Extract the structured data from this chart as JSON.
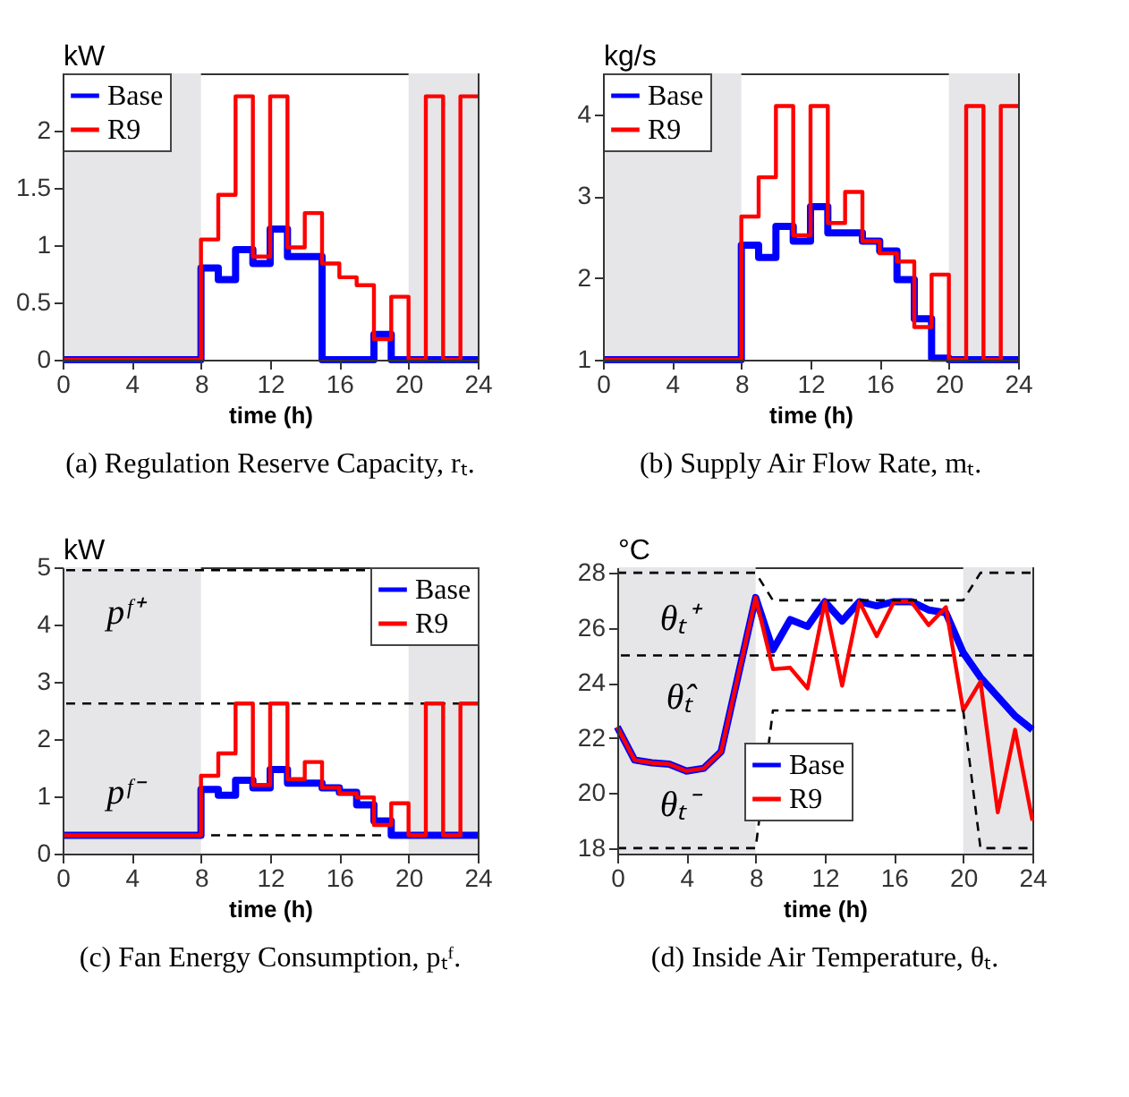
{
  "chart_data": [
    {
      "type": "step",
      "title": "(a) Regulation Reserve Capacity, rₜ.",
      "xlabel": "time (h)",
      "ylabel": "kW",
      "x": [
        0,
        1,
        2,
        3,
        4,
        5,
        6,
        7,
        8,
        9,
        10,
        11,
        12,
        13,
        14,
        15,
        16,
        17,
        18,
        19,
        20,
        21,
        22,
        23,
        24
      ],
      "series": [
        {
          "name": "Base",
          "color": "#0000ff",
          "values": [
            0,
            0,
            0,
            0,
            0,
            0,
            0,
            0,
            0.8,
            0.7,
            0.96,
            0.84,
            1.14,
            0.9,
            0.9,
            0,
            0,
            0,
            0.22,
            0,
            0,
            0,
            0,
            0,
            0
          ]
        },
        {
          "name": "R9",
          "color": "#ff0000",
          "values": [
            0,
            0,
            0,
            0,
            0,
            0,
            0,
            0,
            1.05,
            1.44,
            2.3,
            0.9,
            2.3,
            0.98,
            1.28,
            0.84,
            0.72,
            0.65,
            0.18,
            0.55,
            0,
            2.3,
            0,
            2.3,
            2.3
          ]
        }
      ],
      "xlim": [
        0,
        24
      ],
      "xticks": [
        0,
        4,
        8,
        12,
        16,
        20,
        24
      ],
      "ylim": [
        0,
        2.5
      ],
      "yticks": [
        0,
        0.5,
        1,
        1.5,
        2
      ],
      "bands": [
        {
          "axis": "x",
          "from": 0,
          "to": 8,
          "color": "#e6e6e9"
        },
        {
          "axis": "x",
          "from": 20,
          "to": 24,
          "color": "#e6e6e9"
        }
      ],
      "legend": "top left"
    },
    {
      "type": "step",
      "title": "(b) Supply Air Flow Rate, mₜ.",
      "xlabel": "time (h)",
      "ylabel": "kg/s",
      "x": [
        0,
        1,
        2,
        3,
        4,
        5,
        6,
        7,
        8,
        9,
        10,
        11,
        12,
        13,
        14,
        15,
        16,
        17,
        18,
        19,
        20,
        21,
        22,
        23,
        24
      ],
      "series": [
        {
          "name": "Base",
          "color": "#0000ff",
          "values": [
            1,
            1,
            1,
            1,
            1,
            1,
            1,
            1,
            2.4,
            2.25,
            2.63,
            2.45,
            2.87,
            2.55,
            2.55,
            2.45,
            2.33,
            1.98,
            1.5,
            1.02,
            1,
            1,
            1,
            1,
            1
          ]
        },
        {
          "name": "R9",
          "color": "#ff0000",
          "values": [
            1,
            1,
            1,
            1,
            1,
            1,
            1,
            1,
            2.75,
            3.23,
            4.1,
            2.52,
            4.1,
            2.67,
            3.05,
            2.45,
            2.3,
            2.2,
            1.4,
            2.04,
            1,
            4.1,
            1,
            4.1,
            4.1
          ]
        }
      ],
      "xlim": [
        0,
        24
      ],
      "xticks": [
        0,
        4,
        8,
        12,
        16,
        20,
        24
      ],
      "ylim": [
        1,
        4.5
      ],
      "yticks": [
        1,
        2,
        3,
        4
      ],
      "bands": [
        {
          "axis": "x",
          "from": 0,
          "to": 8,
          "color": "#e6e6e9"
        },
        {
          "axis": "x",
          "from": 20,
          "to": 24,
          "color": "#e6e6e9"
        }
      ],
      "legend": "top left"
    },
    {
      "type": "step",
      "title": "(c) Fan Energy Consumption, pₜᶠ.",
      "xlabel": "time (h)",
      "ylabel": "kW",
      "x": [
        0,
        1,
        2,
        3,
        4,
        5,
        6,
        7,
        8,
        9,
        10,
        11,
        12,
        13,
        14,
        15,
        16,
        17,
        18,
        19,
        20,
        21,
        22,
        23,
        24
      ],
      "series": [
        {
          "name": "Base",
          "color": "#0000ff",
          "values": [
            0.32,
            0.32,
            0.32,
            0.32,
            0.32,
            0.32,
            0.32,
            0.32,
            1.12,
            1.02,
            1.28,
            1.15,
            1.47,
            1.23,
            1.23,
            1.15,
            1.07,
            0.85,
            0.57,
            0.32,
            0.32,
            0.32,
            0.32,
            0.32,
            0.32
          ]
        },
        {
          "name": "R9",
          "color": "#ff0000",
          "values": [
            0.32,
            0.32,
            0.32,
            0.32,
            0.32,
            0.32,
            0.32,
            0.32,
            1.36,
            1.75,
            2.62,
            1.2,
            2.62,
            1.3,
            1.6,
            1.15,
            1.05,
            0.98,
            0.5,
            0.88,
            0.32,
            2.62,
            0.32,
            2.62,
            2.62
          ]
        }
      ],
      "xlim": [
        0,
        24
      ],
      "xticks": [
        0,
        4,
        8,
        12,
        16,
        20,
        24
      ],
      "ylim": [
        0,
        5
      ],
      "yticks": [
        0,
        1,
        2,
        3,
        4,
        5
      ],
      "bands": [
        {
          "axis": "x",
          "from": 0,
          "to": 8,
          "color": "#e6e6e9"
        },
        {
          "axis": "x",
          "from": 20,
          "to": 24,
          "color": "#e6e6e9"
        }
      ],
      "ref_lines": [
        {
          "axis": "y",
          "value": 4.95,
          "label": "pᶠ⁺",
          "color": "#000000",
          "line_style": "dashed"
        },
        {
          "axis": "y",
          "value": 2.62,
          "color": "#000000",
          "line_style": "dashed"
        },
        {
          "axis": "y",
          "value": 0.32,
          "label": "pᶠ⁻",
          "color": "#000000",
          "line_style": "dashed"
        }
      ],
      "legend": "top right"
    },
    {
      "type": "line",
      "title": "(d) Inside Air Temperature, θₜ.",
      "xlabel": "time (h)",
      "ylabel": "°C",
      "x": [
        0,
        1,
        2,
        3,
        4,
        5,
        6,
        7,
        8,
        9,
        10,
        11,
        12,
        13,
        14,
        15,
        16,
        17,
        18,
        19,
        20,
        21,
        22,
        23,
        24
      ],
      "series": [
        {
          "name": "Base",
          "color": "#0000ff",
          "values": [
            22.4,
            21.2,
            21.1,
            21.05,
            20.8,
            20.9,
            21.5,
            24.3,
            27.1,
            25.2,
            26.3,
            26.05,
            26.95,
            26.25,
            26.95,
            26.8,
            26.95,
            26.95,
            26.65,
            26.55,
            25.1,
            24.2,
            23.5,
            22.8,
            22.3
          ]
        },
        {
          "name": "R9",
          "color": "#ff0000",
          "values": [
            22.4,
            21.2,
            21.1,
            21.05,
            20.8,
            20.9,
            21.5,
            24.3,
            27.1,
            24.5,
            24.55,
            23.8,
            26.95,
            23.9,
            26.95,
            25.7,
            26.95,
            26.95,
            26.1,
            26.75,
            23,
            24.05,
            19.3,
            22.3,
            19
          ]
        },
        {
          "name": "θₜ⁺",
          "color": "#000000",
          "line_style": "dashed",
          "x": [
            0,
            8,
            9,
            20,
            21,
            24
          ],
          "values": [
            28,
            28,
            27,
            27,
            28,
            28
          ]
        },
        {
          "name": "θₜ⁻",
          "color": "#000000",
          "line_style": "dashed",
          "x": [
            0,
            8,
            9,
            20,
            21,
            24
          ],
          "values": [
            18,
            18,
            23,
            23,
            18,
            18
          ]
        }
      ],
      "xlim": [
        0,
        24
      ],
      "xticks": [
        0,
        4,
        8,
        12,
        16,
        20,
        24
      ],
      "ylim": [
        17.8,
        28.2
      ],
      "yticks": [
        18,
        20,
        22,
        24,
        26,
        28
      ],
      "bands": [
        {
          "axis": "x",
          "from": 0,
          "to": 8,
          "color": "#e6e6e9"
        },
        {
          "axis": "x",
          "from": 20,
          "to": 24,
          "color": "#e6e6e9"
        }
      ],
      "ref_lines": [
        {
          "axis": "y",
          "value": 25,
          "label": "θ̂ₜ",
          "color": "#000000",
          "line_style": "dashed"
        }
      ],
      "legend": "bottom"
    }
  ]
}
